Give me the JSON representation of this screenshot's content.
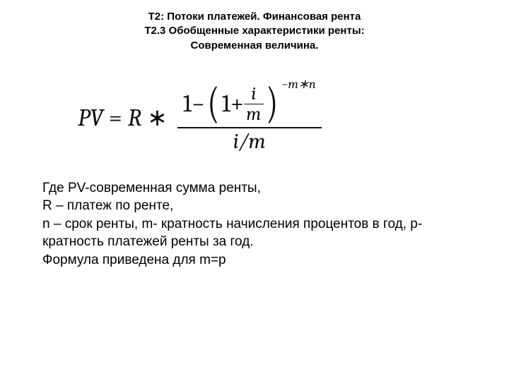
{
  "header": {
    "line1": "Т2: Потоки платежей. Финансовая рента",
    "line2": "Т2.3 Обобщенные характеристики ренты:",
    "line3": "Современная величина."
  },
  "formula": {
    "pv": "PV",
    "eq": " = ",
    "R": "R",
    "mul": " ∗ ",
    "one": "1",
    "minus": " − ",
    "lparen": "(",
    "rparen": ")",
    "plus": " + ",
    "i": "i",
    "m": "m",
    "exp": "−m∗n",
    "den": "i/m"
  },
  "explain": {
    "l1": "Где PV-современная сумма ренты,",
    "l2": "R – платеж по ренте,",
    "l3": "n – срок ренты, m- кратность начисления процентов в год, p- кратность платежей ренты за год.",
    "l4": "Формула приведена для  m=p"
  },
  "style": {
    "text_color": "#000000",
    "bg_color": "#ffffff",
    "header_fontsize": 15,
    "formula_fontsize": 34,
    "explain_fontsize": 19
  }
}
